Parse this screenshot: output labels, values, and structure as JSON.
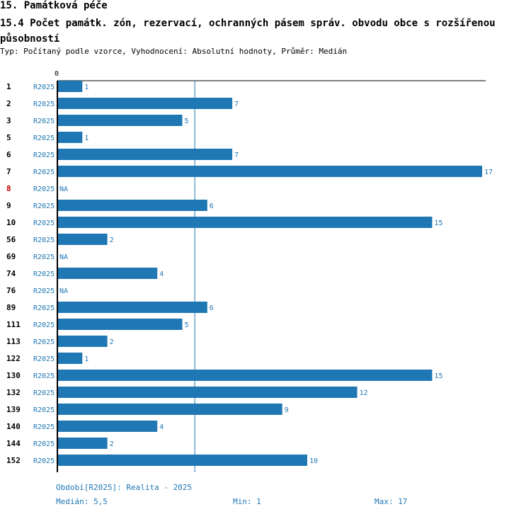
{
  "header": {
    "section_title": "15. Památková péče",
    "chart_title": "15.4 Počet památk. zón, rezervací, ochranných pásem správ. obvodu obce s rozšířenou působností",
    "subtitle": "Typ: Počítaný podle vzorce, Vyhodnocení: Absolutní hodnoty, Průměr: Medián"
  },
  "colors": {
    "bar": "#1f77b4",
    "label_highlight": "#cc0000",
    "label_default": "#000000",
    "axis": "#000000",
    "median_line": "#1f77b4"
  },
  "chart_data": {
    "type": "bar",
    "orientation": "horizontal",
    "title": "15.4 Počet památk. zón, rezervací, ochranných pásem správ. obvodu obce s rozšířenou působností",
    "xlabel": "",
    "ylabel": "",
    "xlim": [
      0,
      17
    ],
    "x_tick_labels": [
      "0"
    ],
    "period_label": "R2025",
    "na_label": "NA",
    "median": 5.5,
    "highlighted_category": "8",
    "categories": [
      "1",
      "2",
      "3",
      "5",
      "6",
      "7",
      "8",
      "9",
      "10",
      "56",
      "69",
      "74",
      "76",
      "89",
      "111",
      "113",
      "122",
      "130",
      "132",
      "139",
      "140",
      "144",
      "152"
    ],
    "values": [
      1,
      7,
      5,
      1,
      7,
      17,
      null,
      6,
      15,
      2,
      null,
      4,
      null,
      6,
      5,
      2,
      1,
      15,
      12,
      9,
      4,
      2,
      10
    ]
  },
  "footer": {
    "period": "Období[R2025]: Realita - 2025",
    "median": "Medián: 5,5",
    "min": "Min: 1",
    "max": "Max: 17"
  }
}
